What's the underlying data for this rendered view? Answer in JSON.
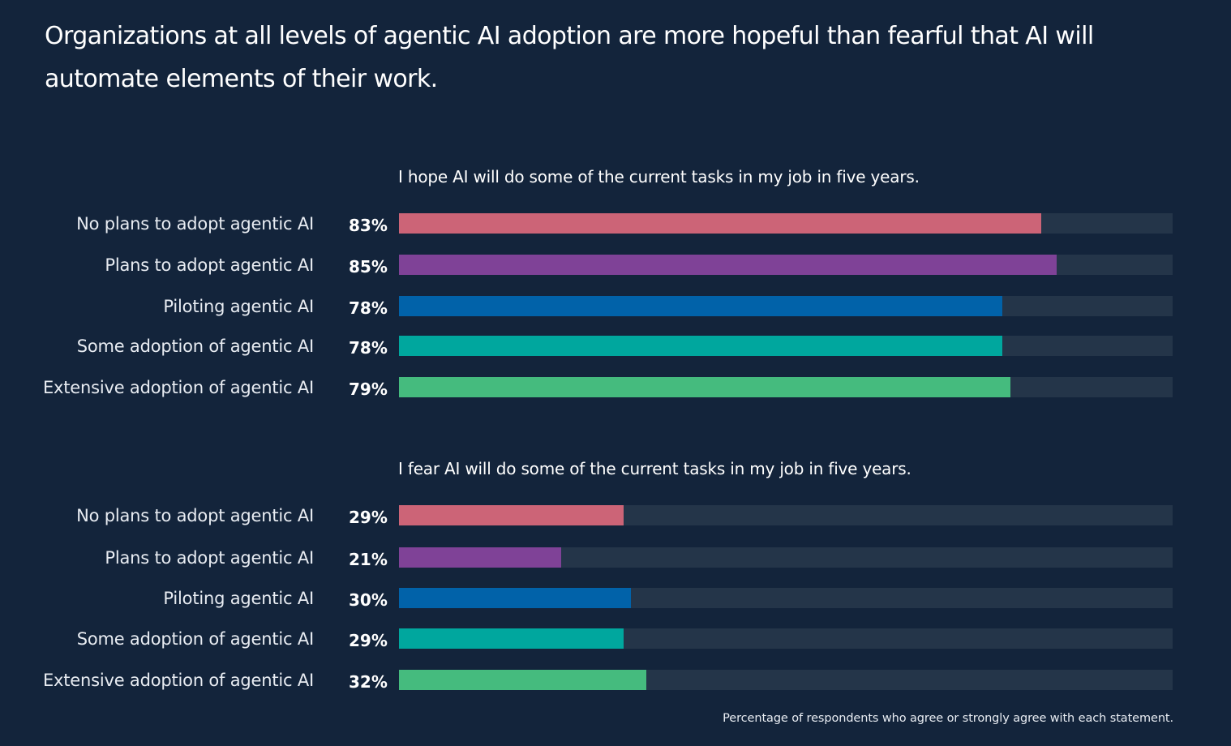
{
  "title": "Organizations at all levels of agentic AI adoption are more hopeful than fearful that AI will automate elements of their work.",
  "footnote": "Percentage of respondents who agree or strongly agree with each statement.",
  "chart_data": [
    {
      "type": "bar",
      "orientation": "horizontal",
      "title": "I hope AI will do some of the current tasks in my job in five years.",
      "categories": [
        "No plans to adopt agentic AI",
        "Plans to  adopt agentic AI",
        "Piloting agentic AI",
        "Some adoption of agentic AI",
        "Extensive adoption of agentic AI"
      ],
      "values": [
        83,
        85,
        78,
        78,
        79
      ],
      "value_labels": [
        "83%",
        "85%",
        "78%",
        "78%",
        "79%"
      ],
      "colors": [
        "#cc6477",
        "#7f4297",
        "#0162a9",
        "#00a79e",
        "#45bb7e"
      ],
      "xlim": [
        0,
        100
      ],
      "unit": "%",
      "grid": false,
      "legend": "none"
    },
    {
      "type": "bar",
      "orientation": "horizontal",
      "title": "I fear AI will do some of the current tasks in my job in five years.",
      "categories": [
        "No plans to adopt agentic AI",
        "Plans to  adopt agentic AI",
        "Piloting agentic AI",
        "Some adoption of agentic AI",
        "Extensive adoption of agentic AI"
      ],
      "values": [
        29,
        21,
        30,
        29,
        32
      ],
      "value_labels": [
        "29%",
        "21%",
        "30%",
        "29%",
        "32%"
      ],
      "colors": [
        "#cc6477",
        "#7f4297",
        "#0162a9",
        "#00a79e",
        "#45bb7e"
      ],
      "xlim": [
        0,
        100
      ],
      "unit": "%",
      "grid": false,
      "legend": "none"
    }
  ],
  "colors": {
    "background": "#13243b",
    "track": "#243549"
  }
}
